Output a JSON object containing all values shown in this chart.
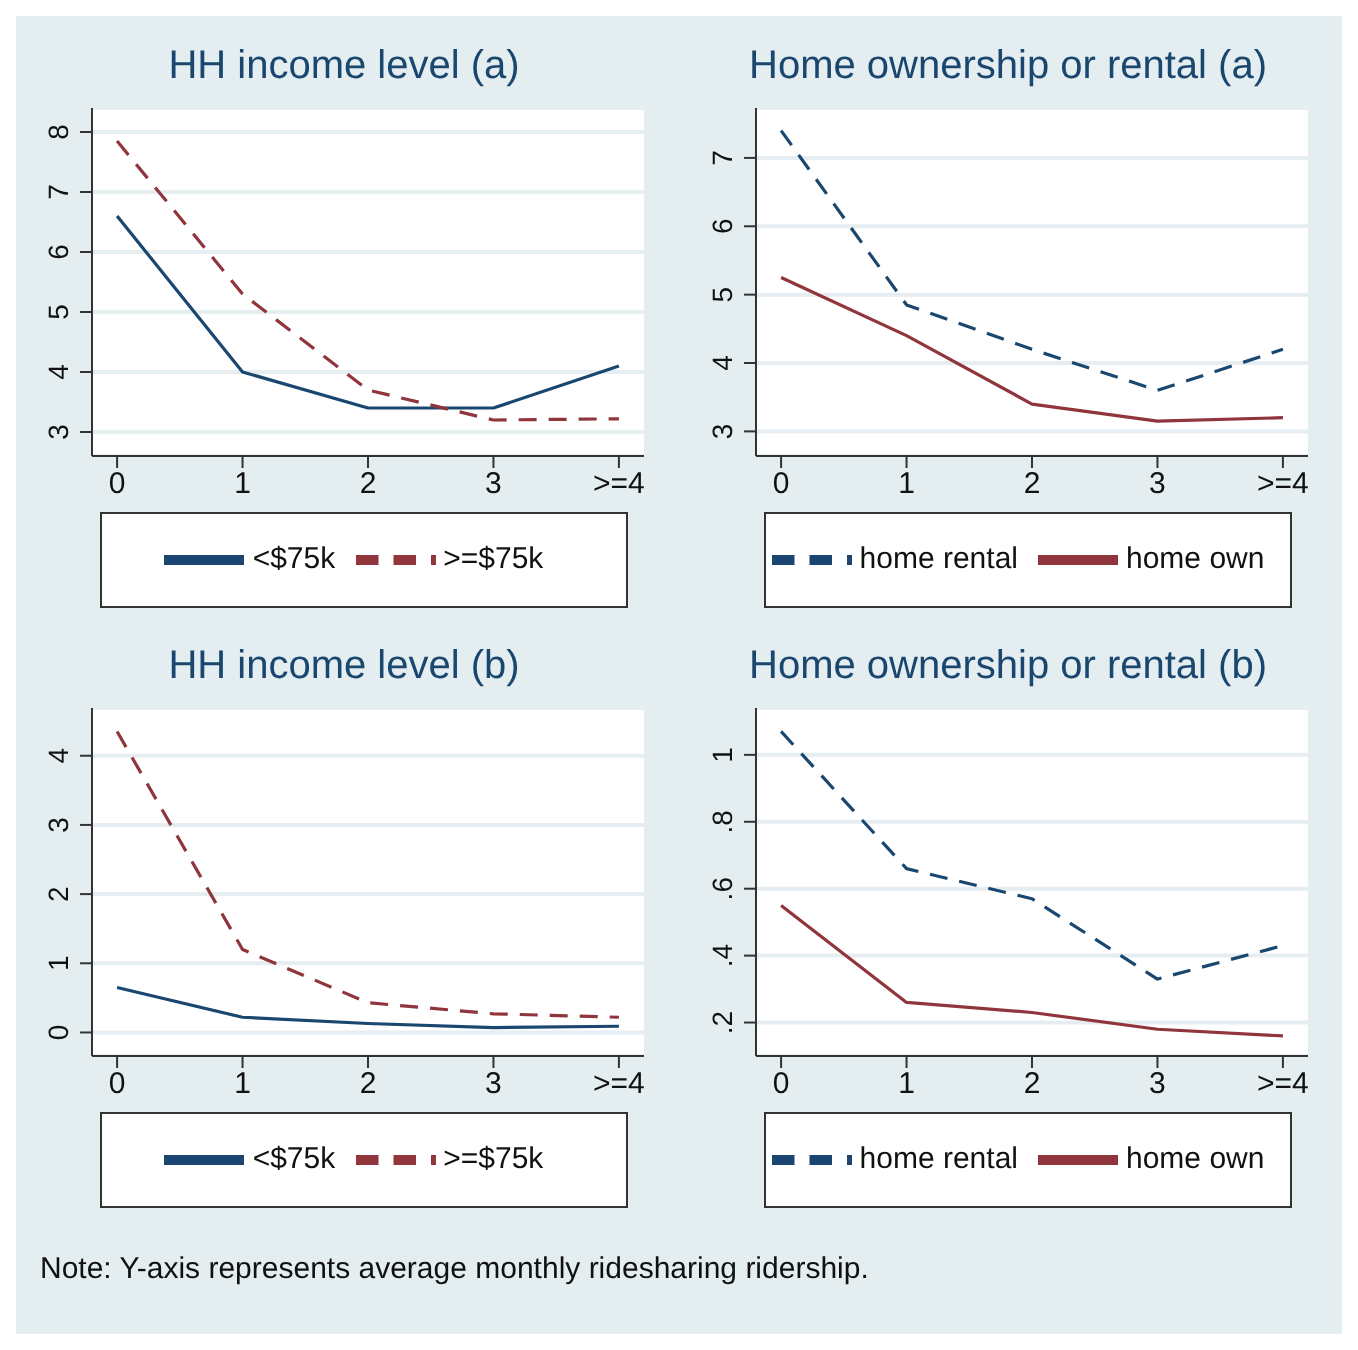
{
  "chart_data": [
    {
      "type": "line",
      "title": "HH income level (a)",
      "categories": [
        "0",
        "1",
        "2",
        "3",
        ">=4"
      ],
      "ylim": [
        2.6,
        8.4
      ],
      "yticks": [
        3,
        4,
        5,
        6,
        7,
        8
      ],
      "grid": "y",
      "legend": "bottom",
      "series": [
        {
          "name": "<$75k",
          "color": "#1a476f",
          "line_style": "solid",
          "values": [
            6.6,
            4.0,
            3.4,
            3.4,
            4.1
          ]
        },
        {
          "name": ">=$75k",
          "color": "#90353b",
          "line_style": "dashed",
          "values": [
            7.85,
            5.3,
            3.7,
            3.2,
            3.22
          ]
        }
      ]
    },
    {
      "type": "line",
      "title": "Home ownership or rental (a)",
      "categories": [
        "0",
        "1",
        "2",
        "3",
        ">=4"
      ],
      "ylim": [
        2.64,
        7.73
      ],
      "yticks": [
        3,
        4,
        5,
        6,
        7
      ],
      "grid": "y",
      "legend": "bottom",
      "series": [
        {
          "name": "home rental",
          "color": "#1a476f",
          "line_style": "dashed",
          "values": [
            7.4,
            4.85,
            4.2,
            3.6,
            4.2
          ]
        },
        {
          "name": "home own",
          "color": "#90353b",
          "line_style": "solid",
          "values": [
            5.25,
            4.4,
            3.4,
            3.15,
            3.2
          ]
        }
      ]
    },
    {
      "type": "line",
      "title": "HH income level (b)",
      "categories": [
        "0",
        "1",
        "2",
        "3",
        ">=4"
      ],
      "ylim": [
        -0.34,
        4.69
      ],
      "yticks": [
        0,
        1,
        2,
        3,
        4
      ],
      "grid": "y",
      "legend": "bottom",
      "series": [
        {
          "name": "<$75k",
          "color": "#1a476f",
          "line_style": "solid",
          "values": [
            0.65,
            0.22,
            0.13,
            0.07,
            0.09
          ]
        },
        {
          "name": ">=$75k",
          "color": "#90353b",
          "line_style": "dashed",
          "values": [
            4.35,
            1.2,
            0.43,
            0.27,
            0.22
          ]
        }
      ]
    },
    {
      "type": "line",
      "title": "Home ownership or rental (b)",
      "categories": [
        "0",
        "1",
        "2",
        "3",
        ">=4"
      ],
      "ylim": [
        0.1,
        1.14
      ],
      "yticks": [
        {
          "value": 0.2,
          "label": ".2"
        },
        {
          "value": 0.4,
          "label": ".4"
        },
        {
          "value": 0.6,
          "label": ".6"
        },
        {
          "value": 0.8,
          "label": ".8"
        },
        1
      ],
      "grid": "y",
      "legend": "bottom",
      "series": [
        {
          "name": "home rental",
          "color": "#1a476f",
          "line_style": "dashed",
          "values": [
            1.07,
            0.66,
            0.57,
            0.33,
            0.43
          ]
        },
        {
          "name": "home own",
          "color": "#90353b",
          "line_style": "solid",
          "values": [
            0.55,
            0.26,
            0.23,
            0.18,
            0.16
          ]
        }
      ],
      "annotations": [
        "Note: Y-axis represents average monthly ridesharing ridership."
      ]
    }
  ]
}
